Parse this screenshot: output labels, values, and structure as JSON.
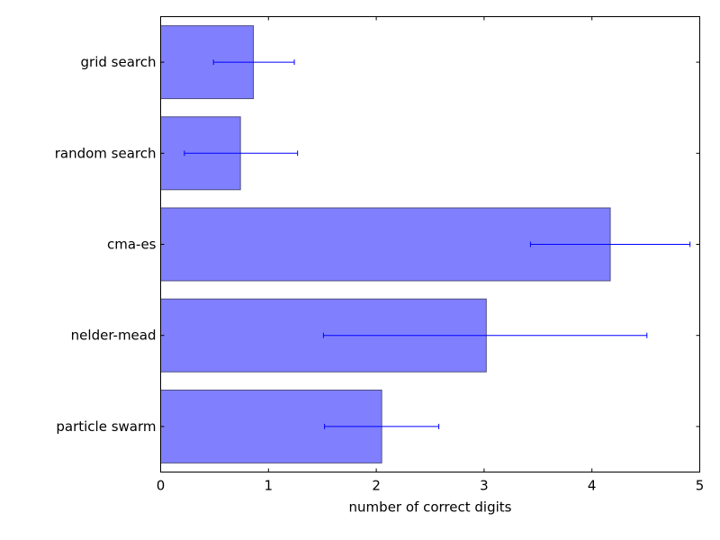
{
  "chart_data": {
    "type": "bar",
    "orientation": "horizontal",
    "title": "",
    "xlabel": "number of correct digits",
    "ylabel": "",
    "xlim": [
      0,
      5
    ],
    "xticks": [
      "0",
      "1",
      "2",
      "3",
      "4",
      "5"
    ],
    "categories": [
      "grid search",
      "random search",
      "cma-es",
      "nelder-mead",
      "particle swarm"
    ],
    "values": [
      0.86,
      0.74,
      4.17,
      3.02,
      2.05
    ],
    "error_low": [
      0.49,
      0.22,
      3.43,
      1.51,
      1.52
    ],
    "error_high": [
      1.24,
      1.27,
      4.91,
      4.51,
      2.58
    ],
    "grid": false,
    "legend": "none",
    "colors": {
      "bar_fill": "#8080ff",
      "bar_edge": "#4d4d80",
      "errorbar": "#0000ff",
      "axis": "#000000"
    }
  }
}
